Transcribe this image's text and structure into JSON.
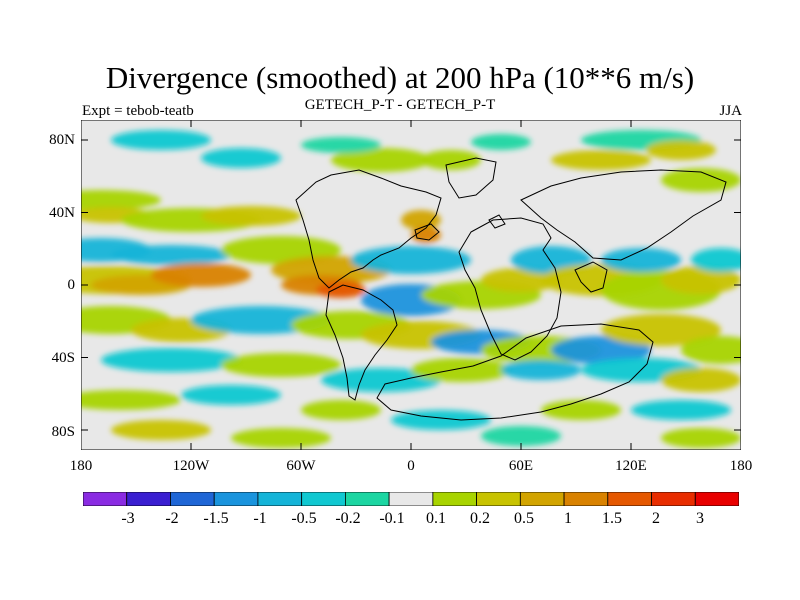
{
  "title": "Divergence (smoothed) at 200 hPa (10**6 m/s)",
  "subtitle_left": "Expt = tebob-teatb",
  "subtitle_center": "GETECH_P-T - GETECH_P-T",
  "subtitle_right": "JJA",
  "y_ticks": [
    "80N",
    "40N",
    "0",
    "40S",
    "80S"
  ],
  "x_ticks": [
    "180",
    "120W",
    "60W",
    "0",
    "60E",
    "120E",
    "180"
  ],
  "colorbar_labels": [
    "-3",
    "-2",
    "-1.5",
    "-1",
    "-0.5",
    "-0.2",
    "-0.1",
    "0.1",
    "0.2",
    "0.5",
    "1",
    "1.5",
    "2",
    "3"
  ],
  "colorbar_colors": [
    "#8a2be2",
    "#3a1fd1",
    "#1f66d6",
    "#1a94dd",
    "#14b4d8",
    "#10c8d1",
    "#1cd6a2",
    "#e8e8e8",
    "#a8d400",
    "#c8c300",
    "#d2a400",
    "#d98200",
    "#e55800",
    "#e82d00",
    "#e80000"
  ],
  "map_background": "#e8e8e8",
  "coastline_color": "#000000"
}
